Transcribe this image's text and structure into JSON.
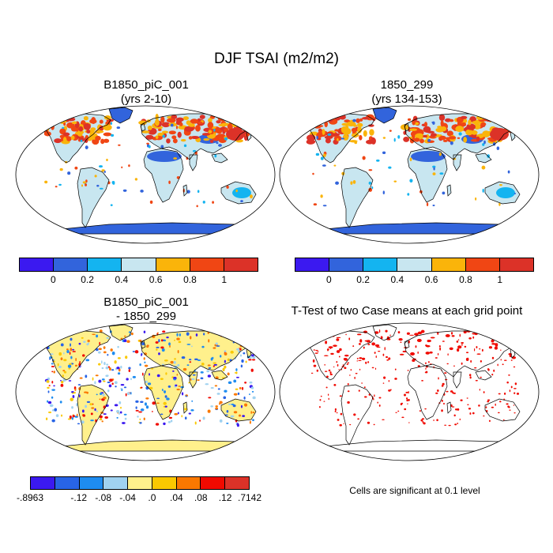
{
  "figure": {
    "title": "DJF TSAI (m2/m2)",
    "panels": [
      {
        "title_line1": "B1850_piC_001",
        "title_line2": "(yrs 2-10)"
      },
      {
        "title_line1": "1850_299",
        "title_line2": "(yrs 134-153)"
      },
      {
        "title_line1": "B1850_piC_001",
        "title_line2": "- 1850_299"
      },
      {
        "title_line1": "T-Test of two Case means at each grid point",
        "title_line2": ""
      }
    ],
    "footnote": "Cells are significant at 0.1 level"
  },
  "colorbars": {
    "case_bar": {
      "colors": [
        "#3b19f0",
        "#3264dc",
        "#14b4f0",
        "#c8e6f0",
        "#fab40a",
        "#f04614",
        "#dc3228"
      ],
      "labels": [
        "0",
        "0.2",
        "0.4",
        "0.6",
        "0.8",
        "1"
      ]
    },
    "diff_bar": {
      "colors": [
        "#3b19f0",
        "#2864e6",
        "#1e8cf0",
        "#a0d2f0",
        "#fff08c",
        "#fac800",
        "#fa7800",
        "#f00a00",
        "#dc3228"
      ],
      "labels": [
        "-.8963",
        "-.12",
        "-.08",
        "-.04",
        ".0",
        ".04",
        ".08",
        ".12",
        ".7142"
      ]
    }
  },
  "colors": {
    "case_ocean_bg": "#ffffff",
    "case_land_default": "#c8e6f0",
    "case_desert": "#3264dc",
    "case_high": "#dc3228",
    "diff_land_default": "#fff08c",
    "significance": "#f00a00"
  }
}
